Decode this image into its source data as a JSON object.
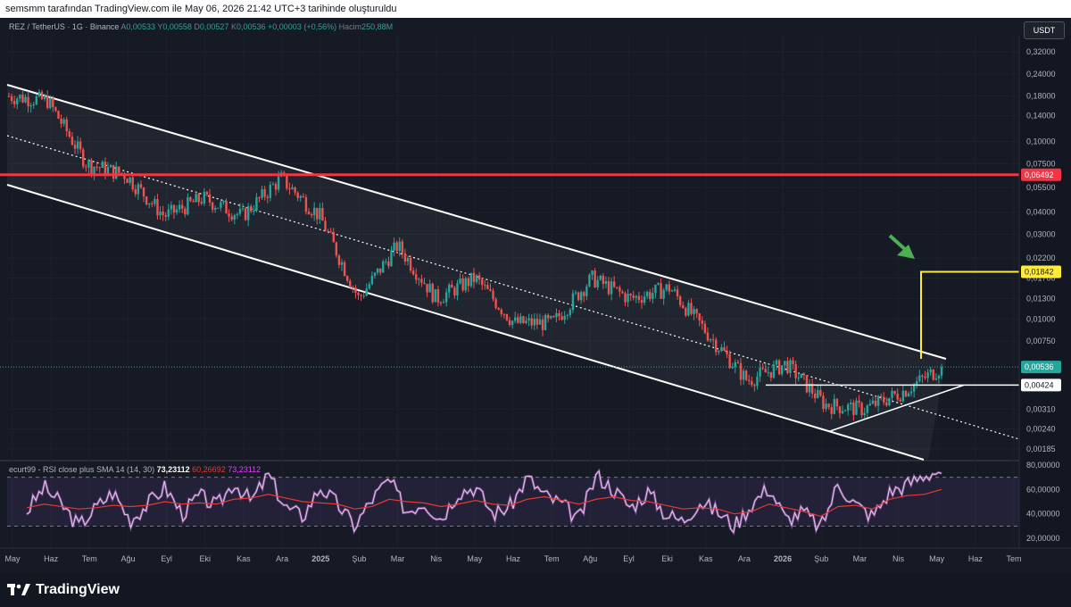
{
  "header": {
    "caption": "semsmm tarafından TradingView.com ile May 06, 2026 21:42 UTC+3 tarihinde oluşturuldu"
  },
  "legend": {
    "symbol": "REZ / TetherUS · 1G · Binance",
    "open_label": "A",
    "open": "0,00533",
    "high_label": "Y",
    "high": "0,00558",
    "low_label": "D",
    "low": "0,00527",
    "close_label": "K",
    "close": "0,00536",
    "change": "+0,00003 (+0,56%)",
    "volume_label": "Hacim",
    "volume": "250,88M"
  },
  "currency_button": "USDT",
  "rsi_legend": {
    "name": "ecurt99 - RSI close plus SMA 14 (14, 30)",
    "value": "73,23112",
    "ma_value": "60,26692",
    "rsi_value": "73,23112"
  },
  "footer": {
    "brand": "TradingView",
    "logo_icon": "tradingview-logo-icon"
  },
  "colors": {
    "background": "#131722",
    "up": "#26a69a",
    "down": "#ef5350",
    "resistance": "#f23645",
    "target": "#ffeb3b",
    "rsi_line": "#e1bee7",
    "rsi_ma": "#e53935",
    "arrow": "#4caf50"
  },
  "chart_data": [
    {
      "type": "line",
      "title": "REZ / TetherUS · 1G · Binance",
      "scale": "log",
      "y_ticks": [
        {
          "value": 0.32,
          "label": "0,32000"
        },
        {
          "value": 0.24,
          "label": "0,24000"
        },
        {
          "value": 0.18,
          "label": "0,18000"
        },
        {
          "value": 0.14,
          "label": "0,14000"
        },
        {
          "value": 0.1,
          "label": "0,10000"
        },
        {
          "value": 0.075,
          "label": "0,07500"
        },
        {
          "value": 0.055,
          "label": "0,05500"
        },
        {
          "value": 0.04,
          "label": "0,04000"
        },
        {
          "value": 0.03,
          "label": "0,03000"
        },
        {
          "value": 0.022,
          "label": "0,02200"
        },
        {
          "value": 0.017,
          "label": "0,01700"
        },
        {
          "value": 0.013,
          "label": "0,01300"
        },
        {
          "value": 0.01,
          "label": "0,01000"
        },
        {
          "value": 0.0075,
          "label": "0,00750"
        },
        {
          "value": 0.0031,
          "label": "0,00310"
        },
        {
          "value": 0.0024,
          "label": "0,00240"
        },
        {
          "value": 0.00185,
          "label": "0,00185"
        }
      ],
      "x_ticks": [
        "May",
        "Haz",
        "Tem",
        "Ağu",
        "Eyl",
        "Eki",
        "Kas",
        "Ara",
        "2025",
        "Şub",
        "Mar",
        "Nis",
        "May",
        "Haz",
        "Tem",
        "Ağu",
        "Eyl",
        "Eki",
        "Kas",
        "Ara",
        "2026",
        "Şub",
        "Mar",
        "Nis",
        "May",
        "Haz",
        "Tem"
      ],
      "x_ticks_bold": [
        "2025",
        "2026"
      ],
      "price_path_monthly": [
        {
          "x": "May",
          "y": 0.18
        },
        {
          "x": "Haz",
          "y": 0.17
        },
        {
          "x": "Tem",
          "y": 0.075
        },
        {
          "x": "Ağu",
          "y": 0.065
        },
        {
          "x": "Eyl",
          "y": 0.038
        },
        {
          "x": "Eki",
          "y": 0.048
        },
        {
          "x": "Kas",
          "y": 0.038
        },
        {
          "x": "Ara",
          "y": 0.062
        },
        {
          "x": "2025",
          "y": 0.038
        },
        {
          "x": "Şub",
          "y": 0.013
        },
        {
          "x": "Mar",
          "y": 0.026
        },
        {
          "x": "Nis",
          "y": 0.013
        },
        {
          "x": "May",
          "y": 0.017
        },
        {
          "x": "Haz",
          "y": 0.0095
        },
        {
          "x": "Tem",
          "y": 0.0095
        },
        {
          "x": "Ağu",
          "y": 0.017
        },
        {
          "x": "Eyl",
          "y": 0.013
        },
        {
          "x": "Eki",
          "y": 0.015
        },
        {
          "x": "Kas",
          "y": 0.0082
        },
        {
          "x": "Ara",
          "y": 0.0045
        },
        {
          "x": "2026",
          "y": 0.0056
        },
        {
          "x": "Şub",
          "y": 0.0033
        },
        {
          "x": "Mar",
          "y": 0.0031
        },
        {
          "x": "Nis",
          "y": 0.0039
        },
        {
          "x": "May",
          "y": 0.00536
        }
      ],
      "levels": [
        {
          "name": "resistance",
          "value": 0.06492,
          "label": "0,06492",
          "color": "#f23645"
        },
        {
          "name": "target",
          "value": 0.01842,
          "label": "0,01842",
          "color": "#ffeb3b"
        },
        {
          "name": "last-price",
          "value": 0.00536,
          "label": "0,00536",
          "color": "#26a69a"
        },
        {
          "name": "triangle-top",
          "value": 0.00424,
          "label": "0,00424",
          "color": "#ffffff"
        }
      ],
      "channel": "descending parallel channel with dotted midline",
      "pattern": "ascending triangle breakout with measured target",
      "grid": true
    },
    {
      "type": "line",
      "title": "ecurt99 - RSI close plus SMA 14 (14, 30)",
      "ylim": [
        20,
        80
      ],
      "y_ticks": [
        {
          "value": 80,
          "label": "80,00000"
        },
        {
          "value": 60,
          "label": "60,00000"
        },
        {
          "value": 40,
          "label": "40,00000"
        },
        {
          "value": 20,
          "label": "20,00000"
        }
      ],
      "bands": [
        70,
        30
      ],
      "series": [
        {
          "values": [
            42,
            62,
            48,
            30,
            45,
            58,
            35,
            48,
            62,
            40,
            55,
            46,
            66,
            50,
            72,
            45,
            38,
            62,
            48,
            30,
            52,
            68,
            42,
            50,
            36,
            58,
            62,
            40,
            46,
            70,
            55,
            48,
            35,
            72,
            60,
            45,
            58,
            40,
            34,
            50,
            42,
            30,
            48,
            62,
            35,
            42,
            28,
            65,
            48,
            38,
            58,
            64,
            72,
            76
          ]
        },
        {
          "values": [
            45,
            48,
            46,
            44,
            45,
            47,
            46,
            47,
            50,
            48,
            49,
            48,
            52,
            53,
            56,
            53,
            50,
            49,
            48,
            44,
            46,
            52,
            50,
            49,
            46,
            48,
            51,
            48,
            47,
            52,
            54,
            51,
            48,
            52,
            54,
            51,
            50,
            47,
            44,
            45,
            44,
            40,
            42,
            48,
            45,
            42,
            38,
            46,
            47,
            44,
            52,
            55,
            56,
            60
          ]
        }
      ]
    }
  ]
}
